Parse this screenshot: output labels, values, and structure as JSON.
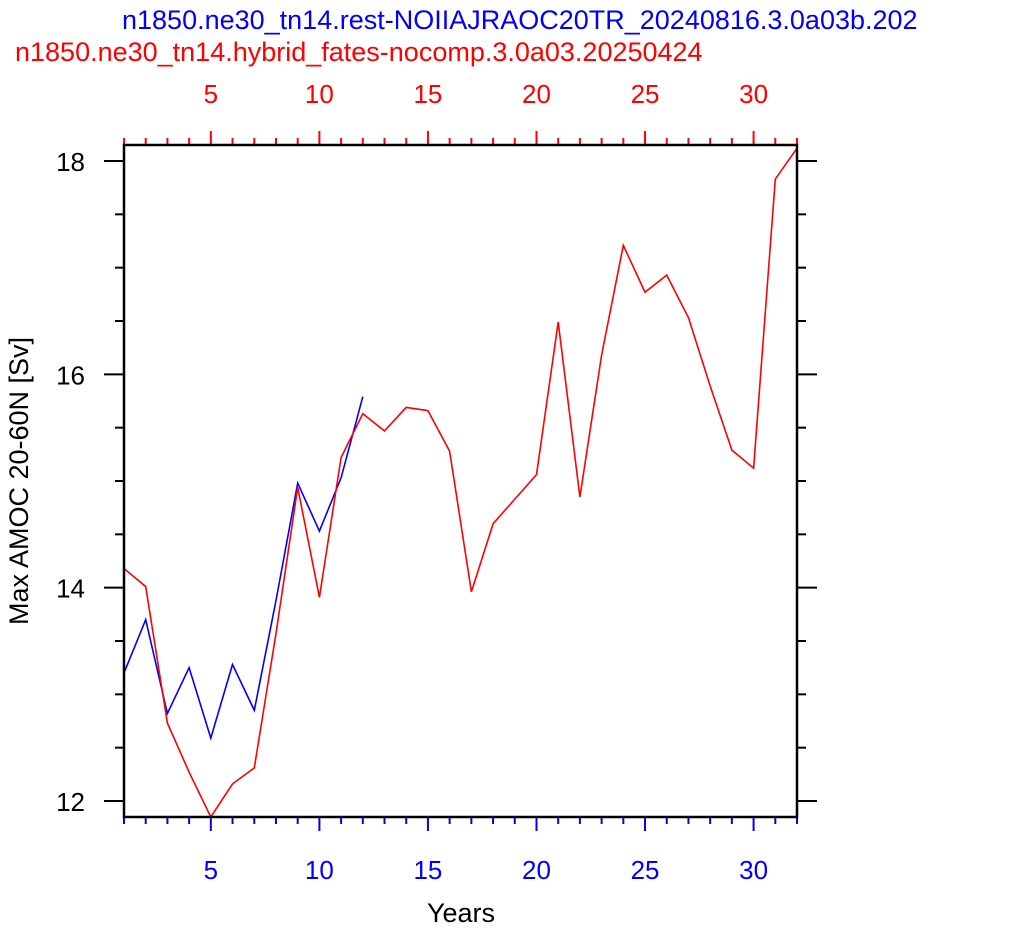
{
  "chart_data": {
    "type": "line",
    "titles": [
      {
        "text": "n1850.ne30_tn14.rest-NOIIAJRAOC20TR_20240816.3.0a03b.202",
        "color": "#0000ff"
      },
      {
        "text": "n1850.ne30_tn14.hybrid_fates-nocomp.3.0a03.20250424",
        "color": "#ff0000"
      }
    ],
    "xlabel": "Years",
    "ylabel": "Max AMOC 20-60N [Sv]",
    "xlim": [
      1,
      32
    ],
    "ylim": [
      11.85,
      18.15
    ],
    "grid": false,
    "bottom_axis": {
      "color": "#0000ff",
      "major_ticks": [
        5,
        10,
        15,
        20,
        25,
        30
      ],
      "tick_labels": [
        "5",
        "10",
        "15",
        "20",
        "25",
        "30"
      ]
    },
    "top_axis": {
      "color": "#ff0000",
      "major_ticks": [
        5,
        10,
        15,
        20,
        25,
        30
      ],
      "tick_labels": [
        "5",
        "10",
        "15",
        "20",
        "25",
        "30"
      ]
    },
    "y_axis": {
      "major_ticks": [
        12,
        14,
        16,
        18
      ],
      "tick_labels": [
        "12",
        "14",
        "16",
        "18"
      ],
      "minor_step": 0.5
    },
    "series": [
      {
        "color": "#0000ff",
        "x": [
          1,
          2,
          3,
          4,
          5,
          6,
          7,
          8,
          9,
          10,
          11,
          12
        ],
        "values": [
          13.2,
          13.7,
          12.82,
          13.25,
          12.59,
          13.28,
          12.85,
          13.88,
          14.98,
          14.53,
          15.03,
          15.79
        ]
      },
      {
        "color": "#ff0000",
        "x": [
          1,
          2,
          3,
          4,
          5,
          6,
          7,
          8,
          9,
          10,
          11,
          12,
          13,
          14,
          15,
          16,
          17,
          18,
          19,
          20,
          21,
          22,
          23,
          24,
          25,
          26,
          27,
          28,
          29,
          30,
          31,
          32
        ],
        "values": [
          14.18,
          14.01,
          12.73,
          12.27,
          11.85,
          12.16,
          12.31,
          13.57,
          14.94,
          13.91,
          15.22,
          15.63,
          15.47,
          15.69,
          15.66,
          15.28,
          13.96,
          14.6,
          14.83,
          15.06,
          16.49,
          14.85,
          16.18,
          17.21,
          16.77,
          16.93,
          16.53,
          15.89,
          15.29,
          15.12,
          17.83,
          18.12
        ]
      }
    ]
  }
}
